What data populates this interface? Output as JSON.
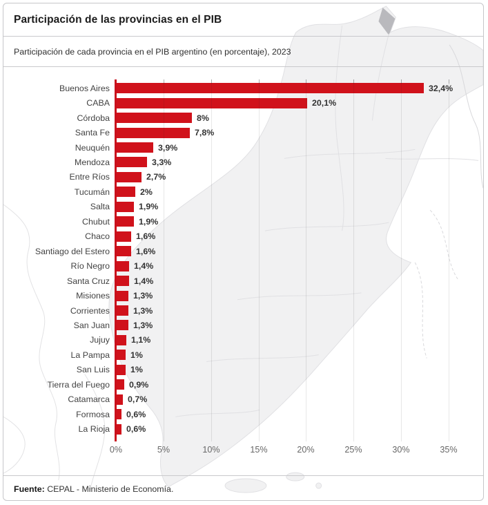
{
  "header": {
    "title": "Participación de las provincias en el PIB",
    "subtitle": "Participación de cada provincia en el PIB argentino (en porcentaje), 2023"
  },
  "chart_data": {
    "type": "bar",
    "orientation": "horizontal",
    "title": "Participación de las provincias en el PIB",
    "subtitle": "Participación de cada provincia en el PIB argentino (en porcentaje), 2023",
    "unit": "%",
    "categories": [
      "Buenos Aires",
      "CABA",
      "Córdoba",
      "Santa Fe",
      "Neuquén",
      "Mendoza",
      "Entre Ríos",
      "Tucumán",
      "Salta",
      "Chubut",
      "Chaco",
      "Santiago del Estero",
      "Río Negro",
      "Santa Cruz",
      "Misiones",
      "Corrientes",
      "San Juan",
      "Jujuy",
      "La Pampa",
      "San Luis",
      "Tierra del Fuego",
      "Catamarca",
      "Formosa",
      "La Rioja"
    ],
    "values": [
      32.4,
      20.1,
      8,
      7.8,
      3.9,
      3.3,
      2.7,
      2,
      1.9,
      1.9,
      1.6,
      1.6,
      1.4,
      1.4,
      1.3,
      1.3,
      1.3,
      1.1,
      1,
      1,
      0.9,
      0.7,
      0.6,
      0.6
    ],
    "value_labels": [
      "32,4%",
      "20,1%",
      "8%",
      "7,8%",
      "3,9%",
      "3,3%",
      "2,7%",
      "2%",
      "1,9%",
      "1,9%",
      "1,6%",
      "1,6%",
      "1,4%",
      "1,4%",
      "1,3%",
      "1,3%",
      "1,3%",
      "1,1%",
      "1%",
      "1%",
      "0,9%",
      "0,7%",
      "0,6%",
      "0,6%"
    ],
    "x_ticks": [
      "0%",
      "5%",
      "10%",
      "15%",
      "20%",
      "25%",
      "30%",
      "35%"
    ],
    "x_tick_values": [
      0,
      5,
      10,
      15,
      20,
      25,
      30,
      35
    ],
    "xlim": [
      0,
      36.5
    ],
    "grid": true,
    "legend_position": "none",
    "bar_color": "#d0121b",
    "axis_color": "#c9101c",
    "background": "argentina-provinces-map"
  },
  "footer": {
    "source_label": "Fuente:",
    "source_text": "CEPAL - Ministerio de Economía."
  },
  "colors": {
    "bar": "#d0121b",
    "map_fill": "#f1f1f2",
    "map_border": "#e0e0e3",
    "map_dark_marker": "#b9b9bd",
    "separator": "#c9c9cc"
  }
}
